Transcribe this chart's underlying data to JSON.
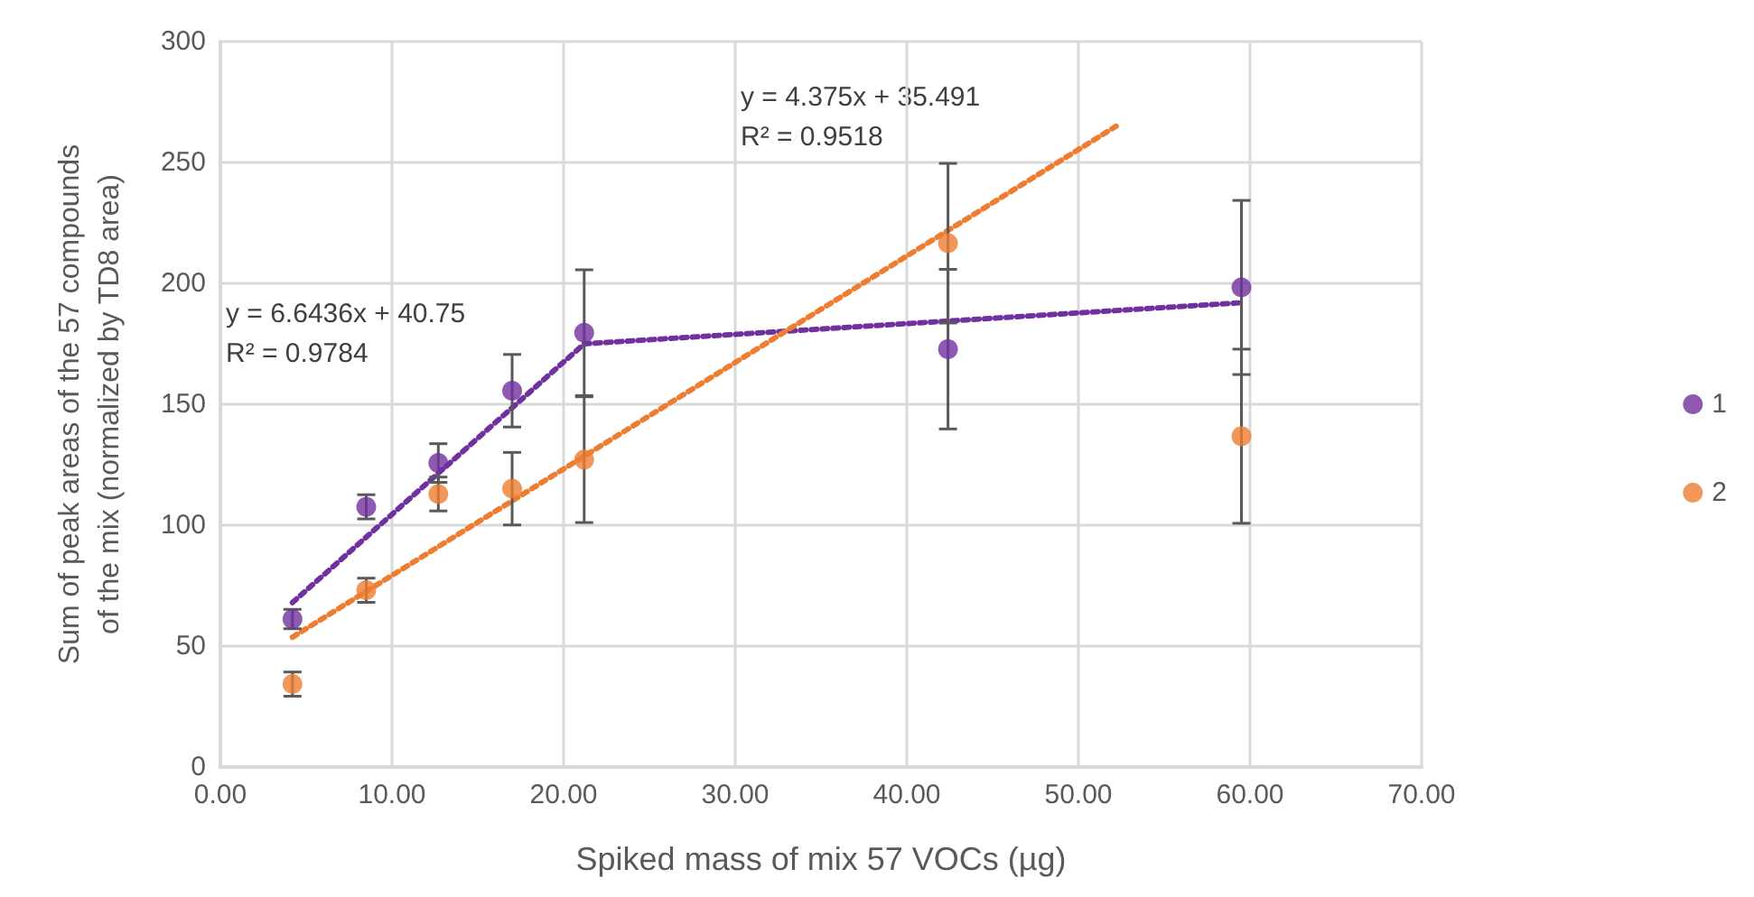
{
  "chart_data": {
    "type": "scatter",
    "xlabel": "Spiked mass of mix 57 VOCs (µg)",
    "ylabel": "Sum of peak areas of the 57 compounds\nof the mix (normalized by TD8 area)",
    "x": [
      4.2,
      8.5,
      12.7,
      17.0,
      21.2,
      42.4,
      59.5
    ],
    "series": [
      {
        "name": "1",
        "color": "#7030a0",
        "values": [
          61.2,
          107.6,
          125.7,
          155.6,
          179.6,
          172.8,
          198.3
        ],
        "errors": [
          4,
          5,
          8,
          15,
          26,
          33,
          36
        ]
      },
      {
        "name": "2",
        "color": "#ed7d31",
        "values": [
          34.3,
          73.1,
          112.9,
          115.1,
          127.1,
          216.6,
          136.8
        ],
        "errors": [
          5,
          5,
          7,
          15,
          26,
          33,
          36
        ]
      },
      {
        "type": "line",
        "color": "#7030a0",
        "x": [
          4.2,
          21.2,
          59.5
        ],
        "values": [
          68,
          175,
          192
        ],
        "line_style": "dotted",
        "marker": "none"
      },
      {
        "type": "line",
        "color": "#ed7d31",
        "x": [
          4.2,
          52.2
        ],
        "values": [
          53.7,
          265
        ],
        "line_style": "dotted",
        "marker": "none"
      }
    ],
    "annotations": [
      "y = 6.6436x + 40.75\nR² = 0.9784",
      "y = 4.375x + 35.491\nR² = 0.9518"
    ],
    "xlim": [
      0,
      70
    ],
    "xticks": [
      {
        "value": 0,
        "label": "0.00"
      },
      {
        "value": 10,
        "label": "10.00"
      },
      {
        "value": 20,
        "label": "20.00"
      },
      {
        "value": 30,
        "label": "30.00"
      },
      {
        "value": 40,
        "label": "40.00"
      },
      {
        "value": 50,
        "label": "50.00"
      },
      {
        "value": 60,
        "label": "60.00"
      },
      {
        "value": 70,
        "label": "70.00"
      }
    ],
    "ylim": [
      0,
      300
    ],
    "yticks": [
      0,
      50,
      100,
      150,
      200,
      250,
      300
    ],
    "grid": true,
    "legend": "right",
    "marker": "circle"
  }
}
